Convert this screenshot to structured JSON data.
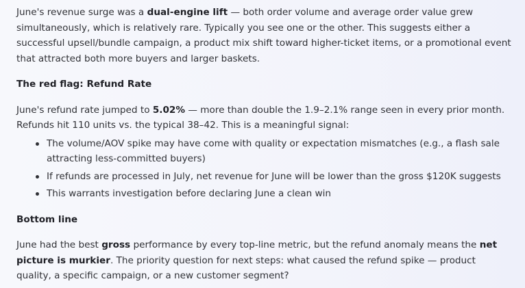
{
  "p1": {
    "a": "June's revenue surge was a ",
    "b": "dual-engine lift",
    "c": " — both order volume and average order value grew simultaneously, which is relatively rare. Typically you see one or the other. This suggests either a successful upsell/bundle campaign, a product mix shift toward higher-ticket items, or a promotional event that attracted both more buyers and larger baskets."
  },
  "heading_refund": "The red flag: Refund Rate",
  "p2": {
    "a": "June's refund rate jumped to ",
    "b": "5.02%",
    "c": " — more than double the 1.9–2.1% range seen in every prior month. Refunds hit 110 units vs. the typical 38–42. This is a meaningful signal:"
  },
  "bullets": [
    "The volume/AOV spike may have come with quality or expectation mismatches (e.g., a flash sale attracting less-committed buyers)",
    "If refunds are processed in July, net revenue for June will be lower than the gross $120K suggests",
    "This warrants investigation before declaring June a clean win"
  ],
  "heading_bottom": "Bottom line",
  "p3": {
    "a": "June had the best ",
    "b": "gross",
    "c": " performance by every top-line metric, but the refund anomaly means the ",
    "d": "net picture is murkier",
    "e": ". The priority question for next steps: what caused the refund spike — product quality, a specific campaign, or a new customer segment?"
  }
}
